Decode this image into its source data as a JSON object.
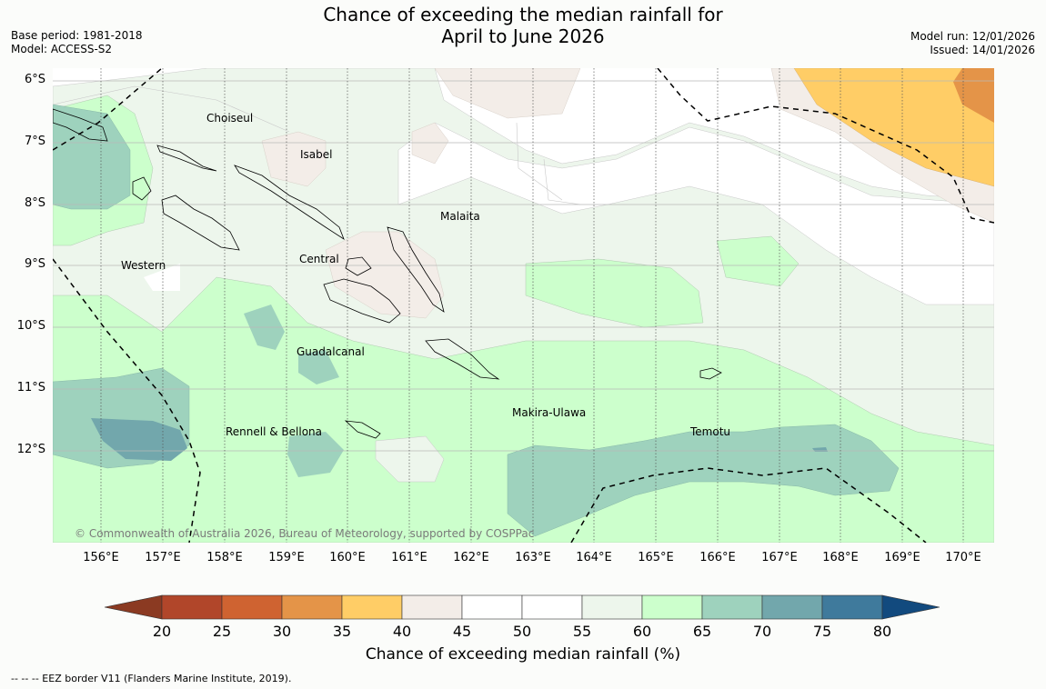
{
  "title": {
    "line1": "Chance of exceeding the median rainfall for",
    "line2": "April to June 2026"
  },
  "meta": {
    "base_period": "Base period: 1981-2018",
    "model": "Model: ACCESS-S2",
    "model_run": "Model run: 12/01/2026",
    "issued": "Issued: 14/01/2026"
  },
  "map": {
    "lat_labels": [
      "6°S",
      "7°S",
      "8°S",
      "9°S",
      "10°S",
      "11°S",
      "12°S"
    ],
    "lon_labels": [
      "156°E",
      "157°E",
      "158°E",
      "159°E",
      "160°E",
      "161°E",
      "162°E",
      "163°E",
      "164°E",
      "165°E",
      "166°E",
      "167°E",
      "168°E",
      "169°E",
      "170°E"
    ],
    "places": {
      "choiseul": "Choiseul",
      "isabel": "Isabel",
      "malaita": "Malaita",
      "western": "Western",
      "central": "Central",
      "guadalcanal": "Guadalcanal",
      "rennell": "Rennell & Bellona",
      "makira": "Makira-Ulawa",
      "temotu": "Temotu"
    },
    "copyright": "© Commonwealth of Australia 2026, Bureau of Meteorology, supported by COSPPac"
  },
  "colorbar": {
    "label": "Chance of exceeding median rainfall (%)",
    "ticks": [
      "20",
      "25",
      "30",
      "35",
      "40",
      "45",
      "50",
      "55",
      "60",
      "65",
      "70",
      "75",
      "80"
    ],
    "colors": {
      "lt20": "#8b3a22",
      "c20_25": "#b1462a",
      "c25_30": "#cf6331",
      "c30_35": "#e49448",
      "c35_40": "#ffcd66",
      "c40_45": "#f3ede8",
      "c45_50": "#ffffff",
      "c50_55": "#ffffff",
      "c55_60": "#edf6ec",
      "c60_65": "#ccffcc",
      "c65_70": "#9ed2bd",
      "c70_75": "#72a7ac",
      "c75_80": "#3f7a9c",
      "gt80": "#124a7e"
    }
  },
  "footnote": "--  --  -- EEZ border V11 (Flanders Marine Institute, 2019)."
}
